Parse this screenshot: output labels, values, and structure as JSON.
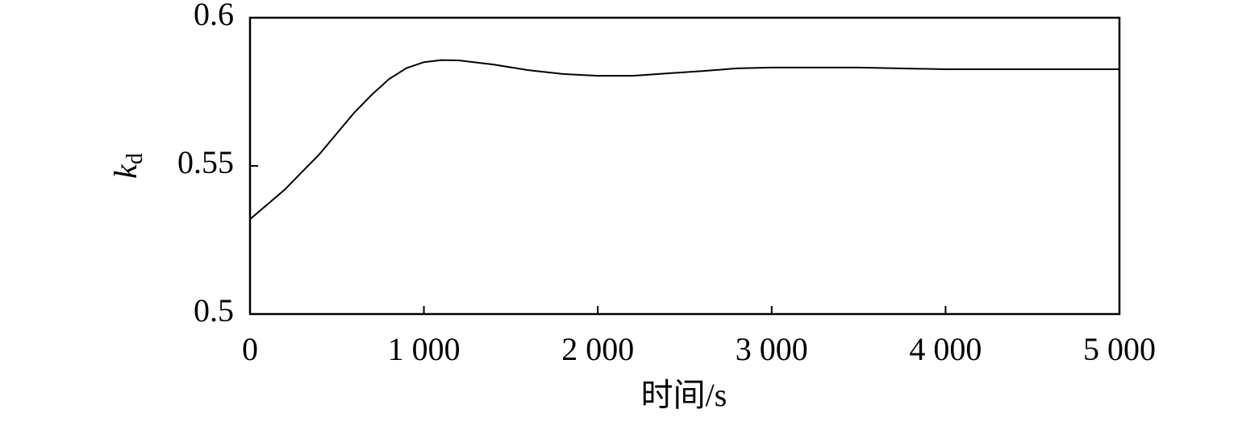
{
  "chart_data": {
    "type": "line",
    "xlabel": "时间/s",
    "ylabel": {
      "base": "k",
      "sub": "d"
    },
    "x": [
      0,
      100,
      200,
      300,
      400,
      500,
      600,
      700,
      800,
      900,
      1000,
      1100,
      1200,
      1400,
      1600,
      1800,
      2000,
      2200,
      2400,
      2600,
      2800,
      3000,
      3500,
      4000,
      5000
    ],
    "series": [
      {
        "color": "#000000",
        "values": [
          0.532,
          0.537,
          0.542,
          0.548,
          0.554,
          0.561,
          0.568,
          0.574,
          0.5793,
          0.583,
          0.585,
          0.5857,
          0.5856,
          0.5842,
          0.5823,
          0.581,
          0.5804,
          0.5804,
          0.5812,
          0.582,
          0.5829,
          0.5832,
          0.5832,
          0.5826,
          0.5826
        ]
      }
    ],
    "xlim": [
      0,
      5000
    ],
    "xticks": [
      0,
      {
        "value": 1000,
        "label": "1 000"
      },
      {
        "value": 2000,
        "label": "2 000"
      },
      {
        "value": 3000,
        "label": "3 000"
      },
      {
        "value": 4000,
        "label": "4 000"
      },
      {
        "value": 5000,
        "label": "5 000"
      }
    ],
    "ylim": [
      0.5,
      0.6
    ],
    "yticks": [
      0.5,
      0.55,
      0.6
    ],
    "grid": false
  }
}
